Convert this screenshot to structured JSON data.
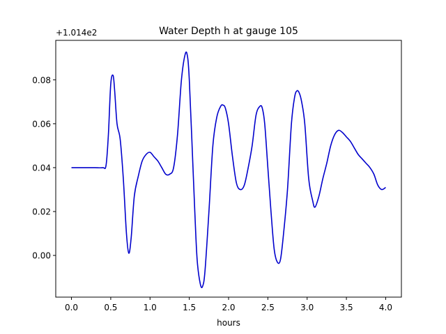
{
  "chart_data": {
    "type": "line",
    "title": "Water Depth h at gauge 105",
    "xlabel": "hours",
    "ylabel": "",
    "offset_label": "+1.014e2",
    "xlim": [
      -0.2,
      4.2
    ],
    "ylim": [
      -0.019,
      0.098
    ],
    "xticks": [
      0.0,
      0.5,
      1.0,
      1.5,
      2.0,
      2.5,
      3.0,
      3.5,
      4.0
    ],
    "xtick_labels": [
      "0.0",
      "0.5",
      "1.0",
      "1.5",
      "2.0",
      "2.5",
      "3.0",
      "3.5",
      "4.0"
    ],
    "yticks": [
      0.0,
      0.02,
      0.04,
      0.06,
      0.08
    ],
    "ytick_labels": [
      "0.00",
      "0.02",
      "0.04",
      "0.06",
      "0.08"
    ],
    "grid": false,
    "color": "#0000cc",
    "series": [
      {
        "name": "",
        "x": [
          0.0,
          0.1,
          0.2,
          0.3,
          0.4,
          0.44,
          0.47,
          0.5,
          0.53,
          0.55,
          0.58,
          0.62,
          0.66,
          0.7,
          0.73,
          0.76,
          0.8,
          0.85,
          0.9,
          0.95,
          1.0,
          1.05,
          1.1,
          1.15,
          1.2,
          1.25,
          1.3,
          1.35,
          1.4,
          1.45,
          1.48,
          1.5,
          1.53,
          1.57,
          1.6,
          1.64,
          1.67,
          1.7,
          1.75,
          1.8,
          1.85,
          1.9,
          1.93,
          1.96,
          2.0,
          2.05,
          2.1,
          2.15,
          2.2,
          2.25,
          2.3,
          2.35,
          2.4,
          2.43,
          2.46,
          2.5,
          2.54,
          2.58,
          2.62,
          2.66,
          2.7,
          2.75,
          2.8,
          2.84,
          2.87,
          2.9,
          2.93,
          2.97,
          3.02,
          3.07,
          3.1,
          3.15,
          3.2,
          3.25,
          3.3,
          3.35,
          3.4,
          3.45,
          3.5,
          3.55,
          3.6,
          3.65,
          3.7,
          3.75,
          3.8,
          3.85,
          3.9,
          3.95,
          4.0
        ],
        "y": [
          0.04,
          0.04,
          0.04,
          0.04,
          0.04,
          0.041,
          0.055,
          0.078,
          0.082,
          0.075,
          0.06,
          0.053,
          0.035,
          0.01,
          0.001,
          0.008,
          0.027,
          0.036,
          0.043,
          0.046,
          0.047,
          0.045,
          0.043,
          0.04,
          0.037,
          0.037,
          0.04,
          0.055,
          0.08,
          0.092,
          0.09,
          0.08,
          0.055,
          0.02,
          -0.002,
          -0.013,
          -0.014,
          -0.007,
          0.02,
          0.05,
          0.063,
          0.068,
          0.0685,
          0.067,
          0.06,
          0.045,
          0.033,
          0.03,
          0.032,
          0.04,
          0.05,
          0.064,
          0.068,
          0.067,
          0.06,
          0.04,
          0.02,
          0.003,
          -0.003,
          -0.002,
          0.01,
          0.03,
          0.06,
          0.072,
          0.075,
          0.074,
          0.07,
          0.06,
          0.035,
          0.025,
          0.022,
          0.027,
          0.035,
          0.042,
          0.05,
          0.055,
          0.057,
          0.056,
          0.054,
          0.052,
          0.049,
          0.046,
          0.044,
          0.042,
          0.04,
          0.037,
          0.032,
          0.03,
          0.031
        ]
      }
    ]
  }
}
